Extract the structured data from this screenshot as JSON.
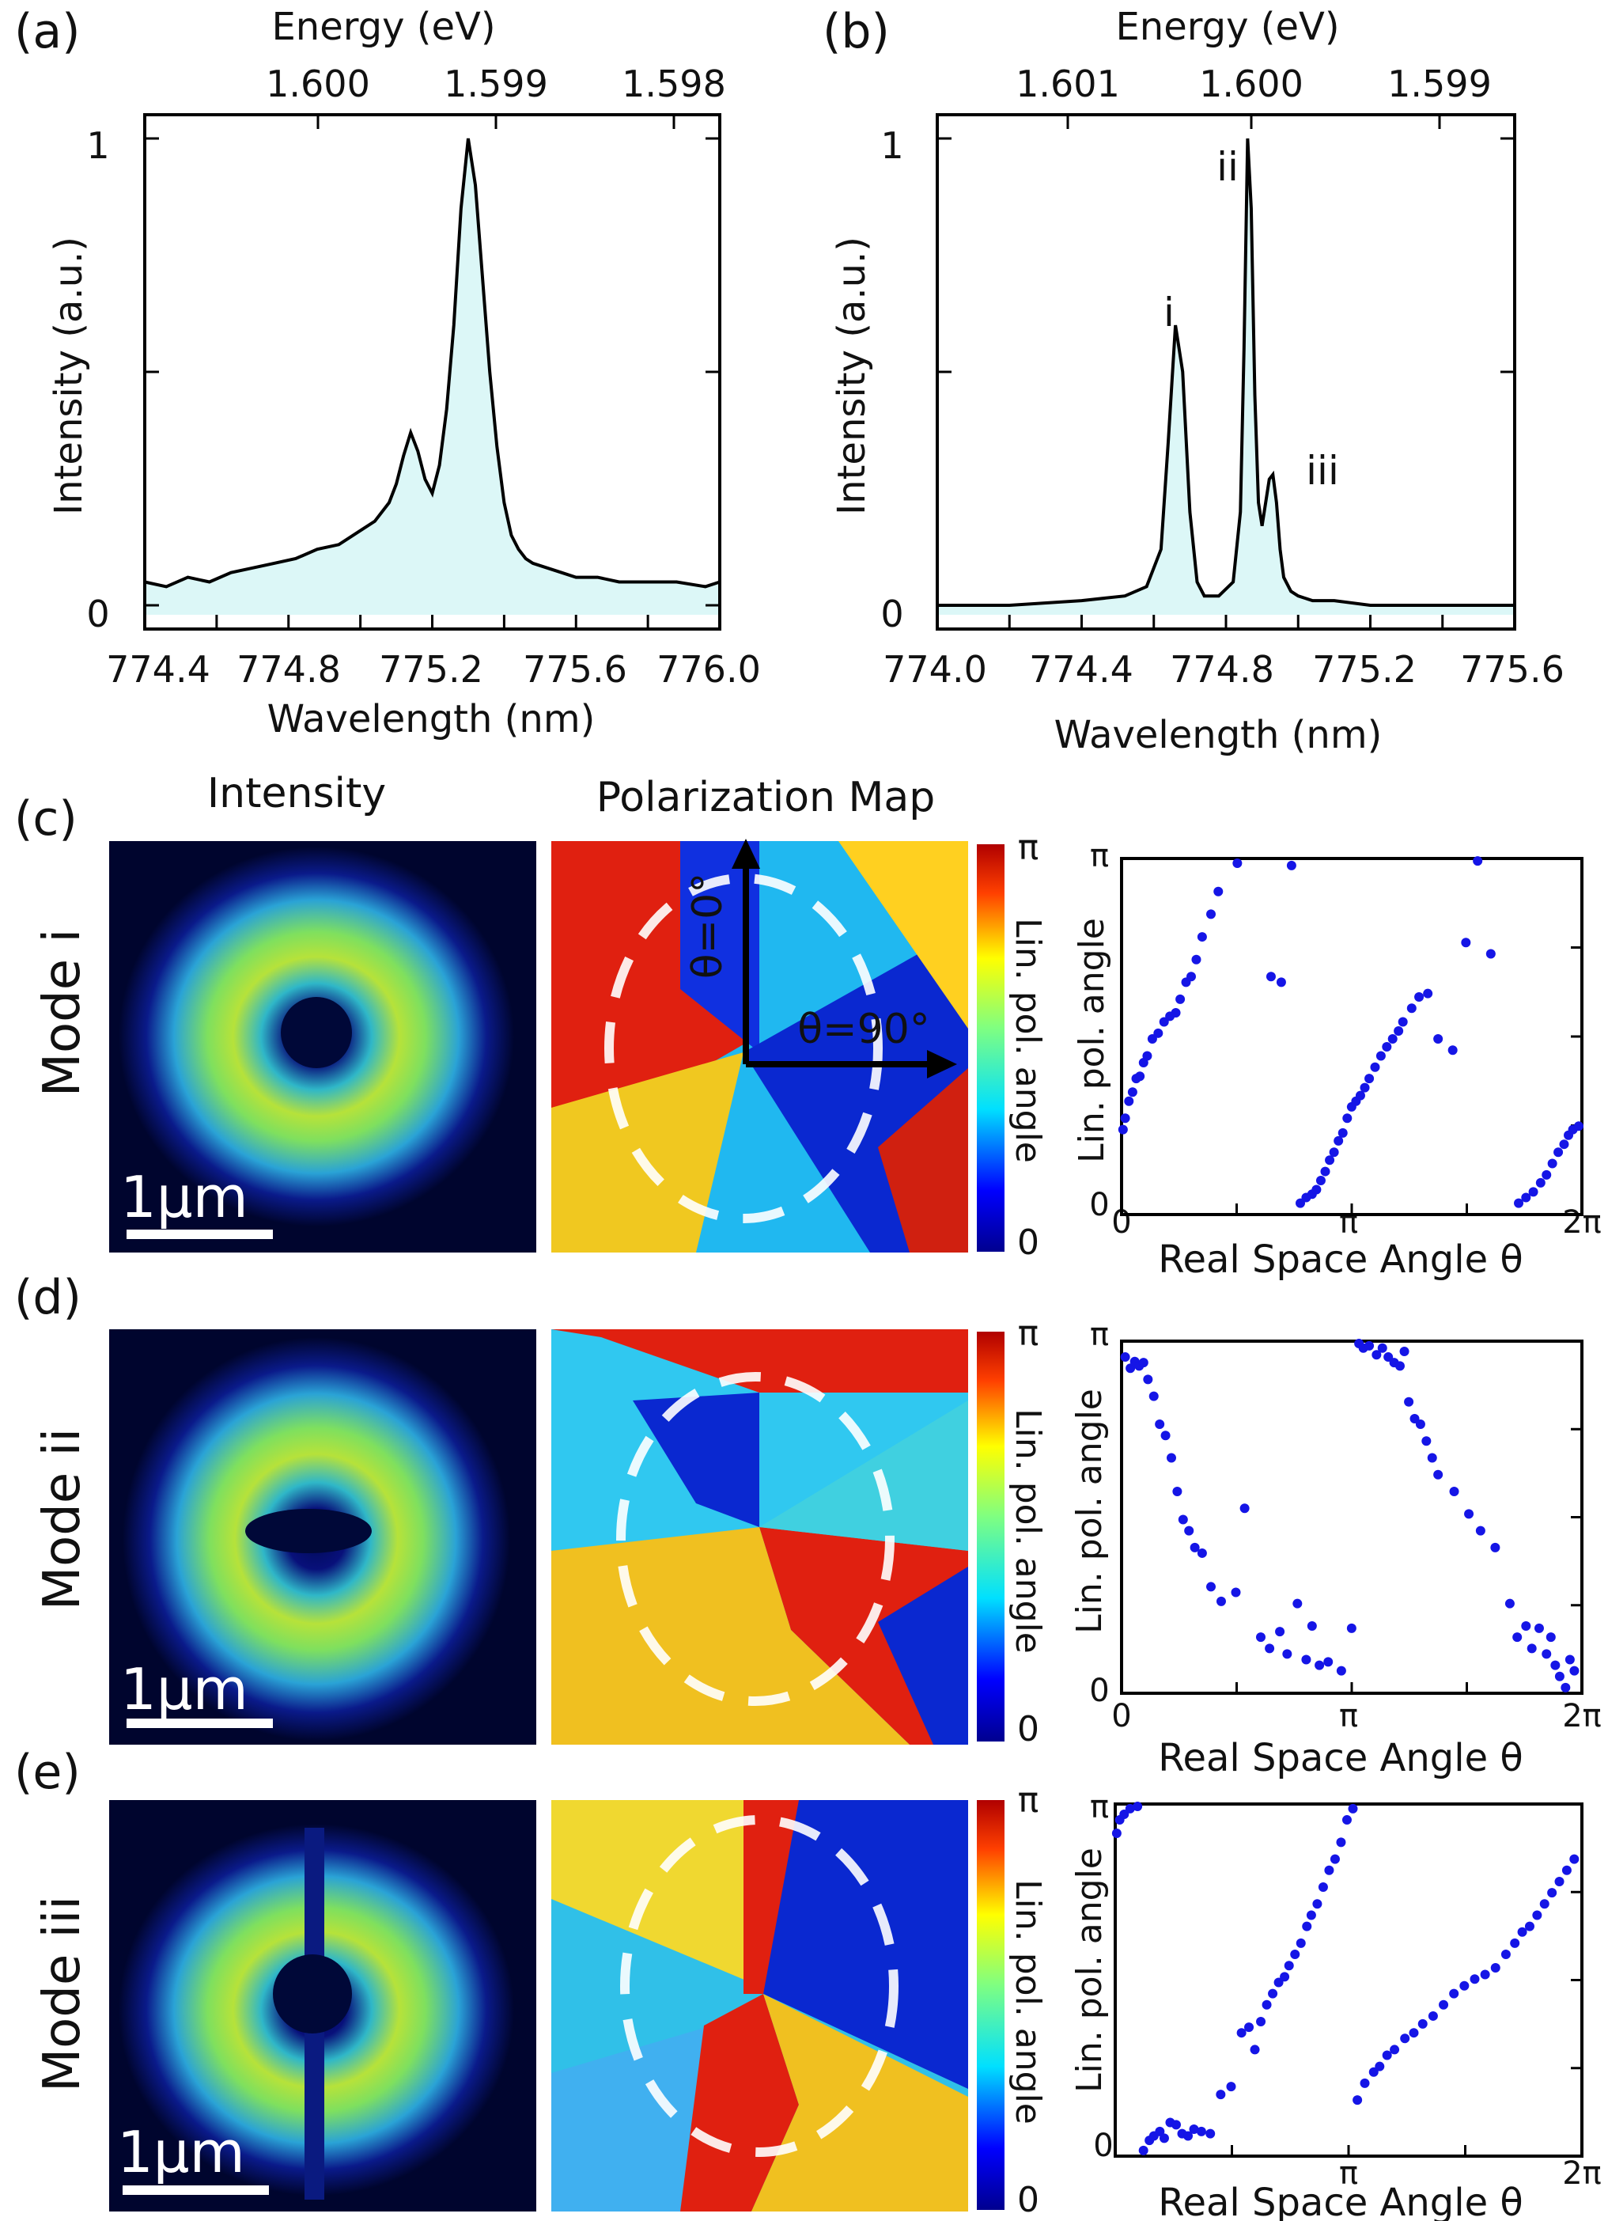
{
  "panels": {
    "a": {
      "label": "(a)"
    },
    "b": {
      "label": "(b)"
    },
    "c": {
      "label": "(c)"
    },
    "d": {
      "label": "(d)"
    },
    "e": {
      "label": "(e)"
    }
  },
  "column_headers": {
    "intensity": "Intensity",
    "polarization": "Polarization Map"
  },
  "scale_bar_label": "1µm",
  "colorbar": {
    "label": "Lin. pol. angle",
    "max_label": "π",
    "min_label": "0"
  },
  "arrows": {
    "theta0": "θ=0°",
    "theta90": "θ=90°"
  },
  "colors": {
    "fill": "#dcf7f7",
    "line": "#000000",
    "points": "#1515e6",
    "circle": "#ffffff"
  },
  "chart_data": [
    {
      "id": "a",
      "type": "area",
      "xlabel": "Wavelength (nm)",
      "ylabel": "Intensity (a.u.)",
      "top_axis_label": "Energy (eV)",
      "x_ticks": [
        "774.4",
        "774.8",
        "775.2",
        "775.6",
        "776.0"
      ],
      "top_ticks": [
        "1.600",
        "1.599",
        "1.598"
      ],
      "y_ticks": [
        "0",
        "1"
      ],
      "xlim": [
        774.4,
        776.0
      ],
      "ylim": [
        0,
        1
      ],
      "x": [
        774.4,
        774.46,
        774.52,
        774.58,
        774.64,
        774.7,
        774.76,
        774.82,
        774.88,
        774.94,
        775.0,
        775.04,
        775.08,
        775.1,
        775.12,
        775.14,
        775.16,
        775.18,
        775.2,
        775.22,
        775.24,
        775.26,
        775.28,
        775.3,
        775.32,
        775.34,
        775.36,
        775.38,
        775.4,
        775.42,
        775.44,
        775.46,
        775.48,
        775.52,
        775.56,
        775.6,
        775.66,
        775.72,
        775.8,
        775.88,
        775.96,
        776.0
      ],
      "y": [
        0.05,
        0.04,
        0.06,
        0.05,
        0.07,
        0.08,
        0.09,
        0.1,
        0.12,
        0.13,
        0.16,
        0.18,
        0.22,
        0.26,
        0.32,
        0.37,
        0.33,
        0.27,
        0.24,
        0.3,
        0.42,
        0.6,
        0.85,
        1.0,
        0.9,
        0.7,
        0.5,
        0.34,
        0.22,
        0.15,
        0.12,
        0.1,
        0.09,
        0.08,
        0.07,
        0.06,
        0.06,
        0.05,
        0.05,
        0.05,
        0.04,
        0.05
      ]
    },
    {
      "id": "b",
      "type": "area",
      "xlabel": "Wavelength (nm)",
      "ylabel": "Intensity (a.u.)",
      "top_axis_label": "Energy (eV)",
      "x_ticks": [
        "774.0",
        "774.4",
        "774.8",
        "775.2",
        "775.6"
      ],
      "top_ticks": [
        "1.601",
        "1.600",
        "1.599"
      ],
      "y_ticks": [
        "0",
        "1"
      ],
      "xlim": [
        774.0,
        775.6
      ],
      "ylim": [
        0,
        1
      ],
      "peak_labels": [
        {
          "text": "i",
          "x": 774.67,
          "y": 0.62
        },
        {
          "text": "ii",
          "x": 774.85,
          "y": 0.92
        },
        {
          "text": "iii",
          "x": 775.03,
          "y": 0.3
        }
      ],
      "x": [
        774.0,
        774.2,
        774.4,
        774.52,
        774.58,
        774.62,
        774.64,
        774.66,
        774.68,
        774.7,
        774.72,
        774.74,
        774.78,
        774.82,
        774.84,
        774.85,
        774.86,
        774.87,
        774.88,
        774.89,
        774.9,
        774.91,
        774.92,
        774.93,
        774.94,
        774.95,
        774.96,
        774.98,
        775.0,
        775.04,
        775.1,
        775.2,
        775.4,
        775.6
      ],
      "y": [
        0.0,
        0.0,
        0.01,
        0.02,
        0.04,
        0.12,
        0.35,
        0.6,
        0.5,
        0.2,
        0.05,
        0.02,
        0.02,
        0.05,
        0.2,
        0.55,
        1.0,
        0.85,
        0.45,
        0.22,
        0.17,
        0.22,
        0.27,
        0.28,
        0.22,
        0.12,
        0.06,
        0.03,
        0.02,
        0.01,
        0.01,
        0.0,
        0.0,
        0.0
      ]
    },
    {
      "id": "c",
      "type": "scatter",
      "row_label": "Mode i",
      "xlabel": "Real Space Angle θ",
      "ylabel": "Lin. pol. angle",
      "x_ticks": [
        "0",
        "π",
        "2π"
      ],
      "y_ticks": [
        "0",
        "π"
      ],
      "xlim": [
        0,
        6.2832
      ],
      "ylim": [
        0,
        3.1416
      ],
      "x": [
        0.02,
        0.05,
        0.1,
        0.15,
        0.2,
        0.25,
        0.3,
        0.35,
        0.42,
        0.5,
        0.58,
        0.66,
        0.74,
        0.8,
        0.88,
        0.95,
        1.02,
        1.1,
        1.22,
        1.32,
        1.58,
        2.04,
        2.18,
        2.32,
        2.44,
        2.52,
        2.6,
        2.66,
        2.72,
        2.78,
        2.84,
        2.9,
        2.96,
        3.02,
        3.08,
        3.14,
        3.2,
        3.26,
        3.32,
        3.38,
        3.46,
        3.54,
        3.62,
        3.7,
        3.78,
        3.84,
        3.96,
        4.06,
        4.18,
        4.32,
        4.52,
        4.7,
        4.86,
        5.04,
        5.42,
        5.52,
        5.62,
        5.72,
        5.8,
        5.88,
        5.96,
        6.04,
        6.1,
        6.16,
        6.24
      ],
      "y": [
        0.75,
        0.85,
        1.0,
        1.08,
        1.2,
        1.22,
        1.34,
        1.4,
        1.55,
        1.6,
        1.7,
        1.75,
        1.78,
        1.9,
        2.05,
        2.1,
        2.25,
        2.45,
        2.65,
        2.85,
        3.1,
        2.1,
        2.05,
        3.08,
        0.1,
        0.15,
        0.18,
        0.22,
        0.3,
        0.38,
        0.48,
        0.55,
        0.65,
        0.72,
        0.85,
        0.95,
        1.0,
        1.05,
        1.12,
        1.2,
        1.3,
        1.4,
        1.48,
        1.55,
        1.62,
        1.7,
        1.82,
        1.92,
        1.95,
        1.55,
        1.45,
        2.4,
        3.12,
        2.3,
        0.1,
        0.15,
        0.2,
        0.28,
        0.35,
        0.45,
        0.55,
        0.62,
        0.7,
        0.75,
        0.78
      ]
    },
    {
      "id": "d",
      "type": "scatter",
      "row_label": "Mode ii",
      "xlabel": "Real Space Angle θ",
      "ylabel": "Lin. pol. angle",
      "x_ticks": [
        "0",
        "π",
        "2π"
      ],
      "y_ticks": [
        "0",
        "π"
      ],
      "xlim": [
        0,
        6.2832
      ],
      "ylim": [
        0,
        3.1416
      ],
      "x": [
        0.05,
        0.12,
        0.18,
        0.24,
        0.3,
        0.36,
        0.44,
        0.52,
        0.6,
        0.68,
        0.76,
        0.84,
        0.92,
        1.0,
        1.1,
        1.22,
        1.36,
        1.56,
        1.68,
        1.9,
        2.02,
        2.16,
        2.26,
        2.4,
        2.52,
        2.6,
        2.7,
        2.82,
        3.0,
        3.14,
        3.24,
        3.3,
        3.38,
        3.48,
        3.56,
        3.64,
        3.72,
        3.8,
        3.86,
        3.92,
        4.0,
        4.08,
        4.16,
        4.24,
        4.32,
        4.54,
        4.74,
        4.9,
        5.1,
        5.3,
        5.4,
        5.52,
        5.6,
        5.7,
        5.8,
        5.86,
        5.92,
        5.98,
        6.06,
        6.12,
        6.18
      ],
      "y": [
        3.0,
        2.9,
        2.96,
        2.92,
        2.95,
        2.8,
        2.65,
        2.4,
        2.3,
        2.1,
        1.8,
        1.55,
        1.45,
        1.3,
        1.25,
        0.95,
        0.82,
        0.9,
        1.65,
        0.5,
        0.4,
        0.55,
        0.35,
        0.8,
        0.3,
        0.6,
        0.25,
        0.28,
        0.2,
        0.58,
        3.12,
        3.08,
        3.1,
        3.02,
        3.08,
        3.0,
        2.95,
        2.92,
        3.05,
        2.6,
        2.45,
        2.4,
        2.25,
        2.1,
        1.95,
        1.8,
        1.6,
        1.45,
        1.3,
        0.8,
        0.5,
        0.6,
        0.4,
        0.58,
        0.35,
        0.5,
        0.25,
        0.15,
        0.05,
        0.3,
        0.2
      ]
    },
    {
      "id": "e",
      "type": "scatter",
      "row_label": "Mode iii",
      "xlabel": "Real Space Angle θ",
      "ylabel": "Lin. pol. angle",
      "x_ticks": [
        "0",
        "π",
        "2π"
      ],
      "y_ticks": [
        "0",
        "π"
      ],
      "xlim": [
        0,
        6.2832
      ],
      "ylim": [
        0,
        3.1416
      ],
      "x": [
        0.02,
        0.06,
        0.12,
        0.2,
        0.3,
        0.38,
        0.46,
        0.52,
        0.6,
        0.66,
        0.74,
        0.82,
        0.9,
        0.98,
        1.06,
        1.16,
        1.28,
        1.42,
        1.56,
        1.7,
        1.8,
        1.88,
        1.96,
        2.04,
        2.12,
        2.2,
        2.28,
        2.34,
        2.42,
        2.5,
        2.58,
        2.64,
        2.72,
        2.8,
        2.88,
        2.96,
        3.04,
        3.12,
        3.2,
        3.26,
        3.36,
        3.48,
        3.56,
        3.66,
        3.76,
        3.9,
        4.02,
        4.14,
        4.28,
        4.42,
        4.56,
        4.7,
        4.84,
        4.98,
        5.12,
        5.26,
        5.38,
        5.48,
        5.58,
        5.68,
        5.78,
        5.88,
        5.98,
        6.08,
        6.18
      ],
      "y": [
        2.88,
        3.0,
        3.05,
        3.1,
        3.12,
        0.05,
        0.14,
        0.18,
        0.22,
        0.16,
        0.3,
        0.28,
        0.2,
        0.18,
        0.24,
        0.22,
        0.2,
        0.55,
        0.62,
        1.1,
        1.15,
        0.95,
        1.2,
        1.35,
        1.45,
        1.55,
        1.6,
        1.7,
        1.8,
        1.9,
        2.05,
        2.15,
        2.25,
        2.4,
        2.55,
        2.65,
        2.8,
        3.0,
        3.1,
        0.5,
        0.65,
        0.75,
        0.8,
        0.9,
        0.95,
        1.05,
        1.1,
        1.18,
        1.25,
        1.35,
        1.45,
        1.52,
        1.58,
        1.62,
        1.68,
        1.8,
        1.9,
        2.0,
        2.05,
        2.15,
        2.25,
        2.35,
        2.45,
        2.55,
        2.65
      ]
    }
  ]
}
